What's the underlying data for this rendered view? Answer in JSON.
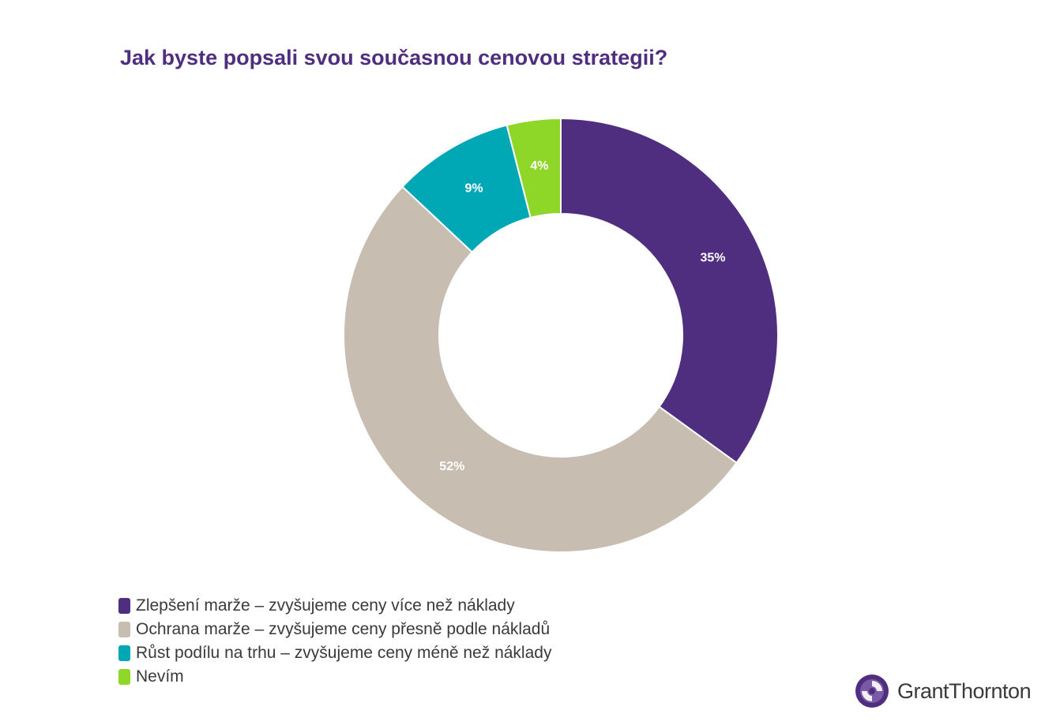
{
  "title": "Jak byste popsali svou současnou cenovou strategii?",
  "chart_data": {
    "type": "pie",
    "variant": "donut",
    "categories": [
      "Zlepšení marže – zvyšujeme ceny více než náklady",
      "Ochrana marže – zvyšujeme ceny přesně podle nákladů",
      "Růst podílu na trhu – zvyšujeme ceny méně než náklady",
      "Nevím"
    ],
    "values": [
      35,
      52,
      9,
      4
    ],
    "labels": [
      "35%",
      "52%",
      "9%",
      "4%"
    ],
    "colors": [
      "#4f2d7f",
      "#c7bdb0",
      "#00a7b5",
      "#8ed628"
    ],
    "legend_position": "bottom-left"
  },
  "logo": {
    "text": "GrantThornton"
  }
}
